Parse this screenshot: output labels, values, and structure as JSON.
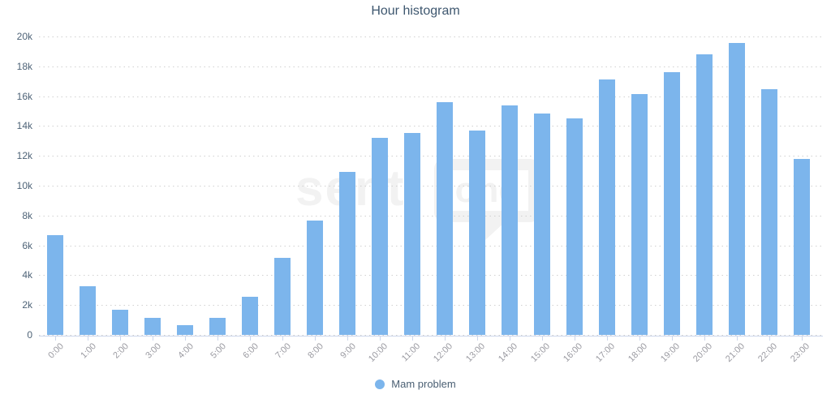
{
  "title": "Hour histogram",
  "legend": {
    "label": "Mam problem"
  },
  "watermark": {
    "part1": "senti",
    "part2": "one"
  },
  "chart_data": {
    "type": "bar",
    "title": "Hour histogram",
    "xlabel": "",
    "ylabel": "",
    "categories": [
      "0:00",
      "1:00",
      "2:00",
      "3:00",
      "4:00",
      "5:00",
      "6:00",
      "7:00",
      "8:00",
      "9:00",
      "10:00",
      "11:00",
      "12:00",
      "13:00",
      "14:00",
      "15:00",
      "16:00",
      "17:00",
      "18:00",
      "19:00",
      "20:00",
      "21:00",
      "22:00",
      "23:00"
    ],
    "series": [
      {
        "name": "Mam problem",
        "values": [
          6700,
          3250,
          1700,
          1150,
          650,
          1150,
          2550,
          5150,
          7650,
          10900,
          13200,
          13550,
          15600,
          13700,
          15400,
          14850,
          14500,
          17100,
          16150,
          17600,
          18800,
          19550,
          16450,
          11800
        ]
      }
    ],
    "ylim": [
      0,
      20000
    ],
    "ytick_step": 2000,
    "ytick_labels": [
      "0",
      "2k",
      "4k",
      "6k",
      "8k",
      "10k",
      "12k",
      "14k",
      "16k",
      "18k",
      "20k"
    ],
    "grid": "horizontal-dotted",
    "legend_position": "bottom-center",
    "colors": {
      "bar": "#7cb5ec",
      "title": "#3e576f",
      "y_label": "#4e6377",
      "x_label": "#9a9aa1",
      "legend_text": "#4a5f73",
      "grid_dot": "#d0d0d0",
      "axis": "#ccd6eb",
      "watermark": "#f2f2f2"
    }
  }
}
